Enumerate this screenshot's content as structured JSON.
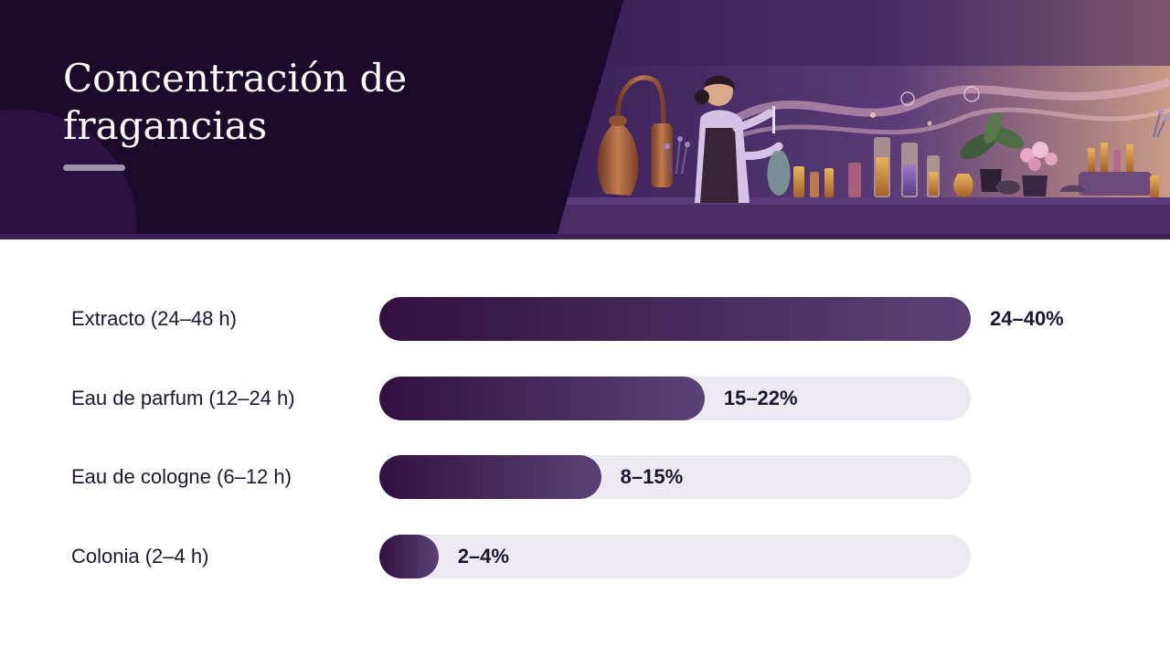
{
  "header": {
    "title": "Concentración de fragancias"
  },
  "colors": {
    "header_bg": "#1c0a2c",
    "bar_start": "#32103f",
    "bar_end": "#5b4276",
    "track": "#ece9f0",
    "text": "#1f1530"
  },
  "chart_data": {
    "type": "bar",
    "orientation": "horizontal",
    "categories": [
      "Extracto (24–48 h)",
      "Eau de parfum (12–24 h)",
      "Eau de cologne (6–12 h)",
      "Colonia (2–4 h)"
    ],
    "value_labels": [
      "24–40%",
      "15–22%",
      "8–15%",
      "2–4%"
    ],
    "ranges": [
      [
        24,
        40
      ],
      [
        15,
        22
      ],
      [
        8,
        15
      ],
      [
        2,
        4
      ]
    ],
    "values": [
      40,
      22,
      15,
      4
    ],
    "xlim": [
      0,
      40
    ],
    "title": "",
    "xlabel": "",
    "ylabel": "",
    "grid": false,
    "legend": "none"
  }
}
